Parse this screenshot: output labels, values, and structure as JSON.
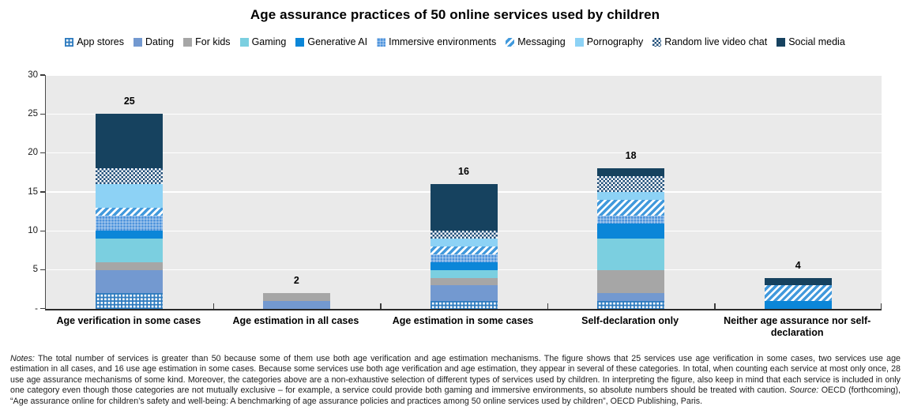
{
  "title": "Age assurance practices of 50 online services used by children",
  "chart_data": {
    "type": "bar",
    "stacked": true,
    "title": "Age assurance practices of 50 online services used by children",
    "legend_position": "top",
    "grid": true,
    "ylim": [
      0,
      30
    ],
    "yticks": [
      {
        "value": 0,
        "label": "-"
      },
      {
        "value": 5,
        "label": "5"
      },
      {
        "value": 10,
        "label": "10"
      },
      {
        "value": 15,
        "label": "15"
      },
      {
        "value": 20,
        "label": "20"
      },
      {
        "value": 25,
        "label": "25"
      },
      {
        "value": 30,
        "label": "30"
      }
    ],
    "categories": [
      "Age verification in some cases",
      "Age estimation in all cases",
      "Age estimation in some cases",
      "Self-declaration only",
      "Neither age assurance nor self-declaration"
    ],
    "data_labels": [
      "25",
      "2",
      "16",
      "18",
      "4"
    ],
    "totals": [
      25,
      2,
      16,
      18,
      4
    ],
    "series": [
      {
        "name": "App stores",
        "pattern": "grid",
        "color": "#2e7bbf",
        "values": [
          2,
          0,
          1,
          1,
          0
        ]
      },
      {
        "name": "Dating",
        "pattern": "solid",
        "color": "#7399d0",
        "values": [
          3,
          1,
          2,
          1,
          0
        ]
      },
      {
        "name": "For kids",
        "pattern": "solid",
        "color": "#a6a6a6",
        "values": [
          1,
          1,
          1,
          3,
          0
        ]
      },
      {
        "name": "Gaming",
        "pattern": "solid",
        "color": "#7bcfe0",
        "values": [
          3,
          0,
          1,
          4,
          0
        ]
      },
      {
        "name": "Generative AI",
        "pattern": "solid",
        "color": "#0b86d8",
        "values": [
          1,
          0,
          1,
          2,
          1
        ]
      },
      {
        "name": "Immersive environments",
        "pattern": "fine-grid",
        "color": "#4f94dc",
        "values": [
          2,
          0,
          1,
          1,
          0
        ]
      },
      {
        "name": "Messaging",
        "pattern": "diagonal-stripes",
        "color": "#4199dc",
        "values": [
          1,
          0,
          1,
          2,
          2
        ]
      },
      {
        "name": "Pornography",
        "pattern": "solid",
        "color": "#8dd2f5",
        "values": [
          3,
          0,
          1,
          1,
          0
        ]
      },
      {
        "name": "Random live video chat",
        "pattern": "checker",
        "color": "#1f4e79",
        "values": [
          2,
          0,
          1,
          2,
          0
        ]
      },
      {
        "name": "Social media",
        "pattern": "solid",
        "color": "#16425f",
        "values": [
          7,
          0,
          6,
          1,
          1
        ]
      }
    ]
  },
  "notes": {
    "label": "Notes:",
    "body": " The total number of services is greater than 50 because some of them use both age verification and age estimation mechanisms. The figure shows that 25 services use age verification in some cases, two services use age estimation in all cases, and 16 use age estimation in some cases. Because some services use both age verification and age estimation, they appear in several of these categories. In total, when counting each service at most only once, 28 use age assurance mechanisms of some kind. Moreover, the categories above are a non-exhaustive selection of different types of services used by children. In interpreting the figure, also keep in mind that each service is included in only one category even though those categories are not mutually exclusive – for example, a service could provide both gaming and immersive environments, so absolute numbers should be treated with caution. ",
    "source_label": "Source:",
    "source_body": " OECD (forthcoming), “Age assurance online for children’s safety and well-being: A benchmarking of age assurance policies and practices among 50 online services used by children”, OECD Publishing, Paris."
  }
}
